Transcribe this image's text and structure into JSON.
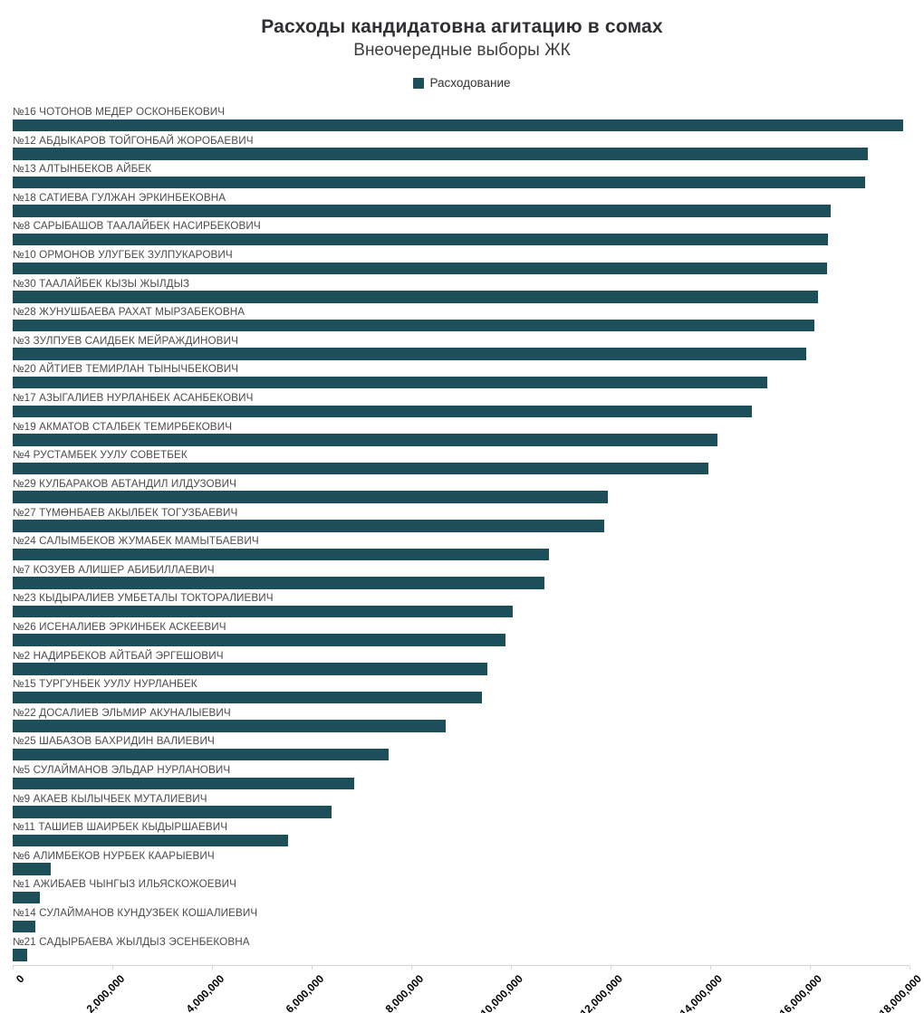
{
  "header": {
    "title": "Расходы кандидатовна агитацию в сомах",
    "subtitle": "Внеочередные выборы ЖК"
  },
  "colors": {
    "bar": "#1d4f5a",
    "axis": "#d4d4d4",
    "label_text": "#4a4c4e"
  },
  "chart_data": {
    "type": "bar",
    "orientation": "horizontal",
    "title": "Расходы кандидатовна агитацию в сомах",
    "subtitle": "Внеочередные выборы ЖК",
    "legend_position": "top-center",
    "legend": [
      {
        "label": "Расходование",
        "color": "#1d4f5a"
      }
    ],
    "grid": false,
    "xlim": [
      0,
      18000000
    ],
    "x_tick_labels": [
      "0",
      "2,000,000",
      "4,000,000",
      "6,000,000",
      "8,000,000",
      "10,000,000",
      "12,000,000",
      "14,000,000",
      "16,000,000",
      "18,000,000"
    ],
    "categories": [
      "№16 ЧОТОНОВ МЕДЕР ОСКОНБЕКОВИЧ",
      "№12 АБДЫКАРОВ ТОЙГОНБАЙ ЖОРОБАЕВИЧ",
      "№13 АЛТЫНБЕКОВ АЙБЕК",
      "№18 САТИЕВА ГУЛЖАН ЭРКИНБЕКОВНА",
      "№8 САРЫБАШОВ ТААЛАЙБЕК НАСИРБЕКОВИЧ",
      "№10 ОРМОНОВ УЛУГБЕК ЗУЛПУКАРОВИЧ",
      "№30 ТААЛАЙБЕК КЫЗЫ ЖЫЛДЫЗ",
      "№28 ЖУНУШБАЕВА РАХАТ МЫРЗАБЕКОВНА",
      "№3 ЗУЛПУЕВ САИДБЕК МЕЙРАЖДИНОВИЧ",
      "№20 АЙТИЕВ ТЕМИРЛАН ТЫНЫЧБЕКОВИЧ",
      "№17 АЗЫГАЛИЕВ НУРЛАНБЕК АСАНБЕКОВИЧ",
      "№19 АКМАТОВ СТАЛБЕК ТЕМИРБЕКОВИЧ",
      "№4 РУСТАМБЕК УУЛУ СОВЕТБЕК",
      "№29 КУЛБАРАКОВ АБТАНДИЛ ИЛДУЗОВИЧ",
      "№27 ТҮМӨНБАЕВ АКЫЛБЕК ТОГУЗБАЕВИЧ",
      "№24 САЛЫМБЕКОВ ЖУМАБЕК МАМЫТБАЕВИЧ",
      "№7 КОЗУЕВ АЛИШЕР АБИБИЛЛАЕВИЧ",
      "№23 КЫДЫРАЛИЕВ УМБЕТАЛЫ ТОКТОРАЛИЕВИЧ",
      "№26 ИСЕНАЛИЕВ ЭРКИНБЕК АСКЕЕВИЧ",
      "№2 НАДИРБЕКОВ АЙТБАЙ ЭРГЕШОВИЧ",
      "№15 ТУРГУНБЕК УУЛУ НУРЛАНБЕК",
      "№22 ДОСАЛИЕВ ЭЛЬМИР АКУНАЛЫЕВИЧ",
      "№25 ШАБАЗОВ БАХРИДИН ВАЛИЕВИЧ",
      "№5 СУЛАЙМАНОВ ЭЛЬДАР НУРЛАНОВИЧ",
      "№9 АКАЕВ КЫЛЫЧБЕК МУТАЛИЕВИЧ",
      "№11 ТАШИЕВ ШАИРБЕК КЫДЫРШАЕВИЧ",
      "№6 АЛИМБЕКОВ НУРБЕК КААРЫЕВИЧ",
      "№1 АЖИБАЕВ ЧЫНГЫЗ ИЛЬЯСКОЖОЕВИЧ",
      "№14 СУЛАЙМАНОВ КУНДУЗБЕК КОШАЛИЕВИЧ",
      "№21 САДЫРБАЕВА ЖЫЛДЫЗ ЭСЕНБЕКОВНА"
    ],
    "series": [
      {
        "name": "Расходование",
        "values": [
          17870000,
          17160000,
          17110000,
          16420000,
          16360000,
          16350000,
          16160000,
          16090000,
          15930000,
          15150000,
          14840000,
          14150000,
          13960000,
          11950000,
          11870000,
          10760000,
          10670000,
          10040000,
          9890000,
          9530000,
          9420000,
          8690000,
          7550000,
          6850000,
          6400000,
          5530000,
          760000,
          550000,
          450000,
          290000
        ]
      }
    ]
  }
}
